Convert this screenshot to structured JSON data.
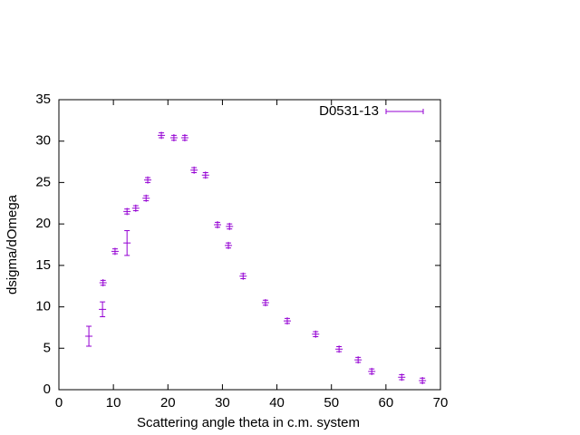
{
  "chart_data": {
    "type": "scatter",
    "xlabel": "Scattering angle theta in c.m. system",
    "ylabel": "dsigma/dOmega",
    "xlim": [
      0,
      70
    ],
    "xticks": [
      0,
      10,
      20,
      30,
      40,
      50,
      60,
      70
    ],
    "ylim": [
      0,
      35
    ],
    "yticks": [
      0,
      5,
      10,
      15,
      20,
      25,
      30,
      35
    ],
    "legend": "top-right",
    "series": [
      {
        "name": "D0531-13",
        "color": "#9400d3",
        "x": [
          5.5,
          8.0,
          8.1,
          10.3,
          12.5,
          12.5,
          14.1,
          16.0,
          16.3,
          18.8,
          21.1,
          23.1,
          24.8,
          26.9,
          29.1,
          31.3,
          31.1,
          33.8,
          37.9,
          41.9,
          47.1,
          51.4,
          54.9,
          57.4,
          62.9,
          66.7
        ],
        "values": [
          6.45,
          9.7,
          12.9,
          16.7,
          17.7,
          21.5,
          21.9,
          23.1,
          25.3,
          30.7,
          30.4,
          30.4,
          26.5,
          25.9,
          19.9,
          19.7,
          17.4,
          13.7,
          10.5,
          8.3,
          6.7,
          4.9,
          3.6,
          2.2,
          1.5,
          1.1
        ],
        "errors": [
          1.2,
          0.9,
          0.3,
          0.3,
          1.5,
          0.3,
          0.3,
          0.3,
          0.3,
          0.3,
          0.3,
          0.3,
          0.3,
          0.3,
          0.3,
          0.3,
          0.3,
          0.3,
          0.3,
          0.3,
          0.3,
          0.3,
          0.3,
          0.3,
          0.3,
          0.3
        ]
      }
    ]
  }
}
